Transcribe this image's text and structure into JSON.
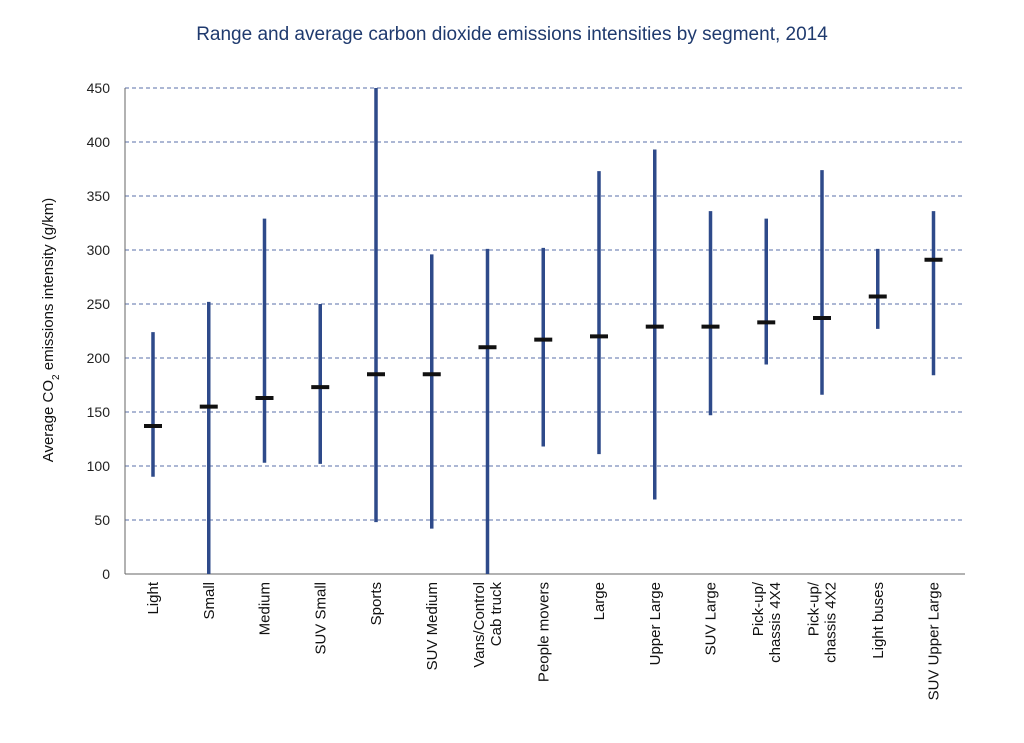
{
  "chart_data": {
    "type": "range",
    "title": "Range and average carbon dioxide emissions intensities by segment, 2014",
    "ylabel": "Average CO2 emissions intensity (g/km)",
    "ylabel_main": "Average CO",
    "ylabel_sub": "2",
    "ylabel_rest": " emissions intensity (g/km)",
    "ylim": [
      0,
      450
    ],
    "yticks": [
      0,
      50,
      100,
      150,
      200,
      250,
      300,
      350,
      400,
      450
    ],
    "grid": true,
    "colors": {
      "range": "#2e4a8a",
      "average": "#111111",
      "grid": "#5a6fa8",
      "title": "#1f3a6e"
    },
    "categories": [
      {
        "lines": [
          "Light"
        ],
        "min": 90,
        "max": 224,
        "avg": 137
      },
      {
        "lines": [
          "Small"
        ],
        "min": 0,
        "max": 252,
        "avg": 155
      },
      {
        "lines": [
          "Medium"
        ],
        "min": 103,
        "max": 329,
        "avg": 163
      },
      {
        "lines": [
          "SUV Small"
        ],
        "min": 102,
        "max": 250,
        "avg": 173
      },
      {
        "lines": [
          "Sports"
        ],
        "min": 48,
        "max": 450,
        "avg": 185
      },
      {
        "lines": [
          "SUV Medium"
        ],
        "min": 42,
        "max": 296,
        "avg": 185
      },
      {
        "lines": [
          "Vans/Control",
          "Cab truck"
        ],
        "min": 0,
        "max": 301,
        "avg": 210
      },
      {
        "lines": [
          "People movers"
        ],
        "min": 118,
        "max": 302,
        "avg": 217
      },
      {
        "lines": [
          "Large"
        ],
        "min": 111,
        "max": 373,
        "avg": 220
      },
      {
        "lines": [
          "Upper Large"
        ],
        "min": 69,
        "max": 393,
        "avg": 229
      },
      {
        "lines": [
          "SUV Large"
        ],
        "min": 147,
        "max": 336,
        "avg": 229
      },
      {
        "lines": [
          "Pick-up/",
          "chassis 4X4"
        ],
        "min": 194,
        "max": 329,
        "avg": 233
      },
      {
        "lines": [
          "Pick-up/",
          "chassis 4X2"
        ],
        "min": 166,
        "max": 374,
        "avg": 237
      },
      {
        "lines": [
          "Light buses"
        ],
        "min": 227,
        "max": 301,
        "avg": 257
      },
      {
        "lines": [
          "SUV Upper Large"
        ],
        "min": 184,
        "max": 336,
        "avg": 291
      }
    ]
  }
}
